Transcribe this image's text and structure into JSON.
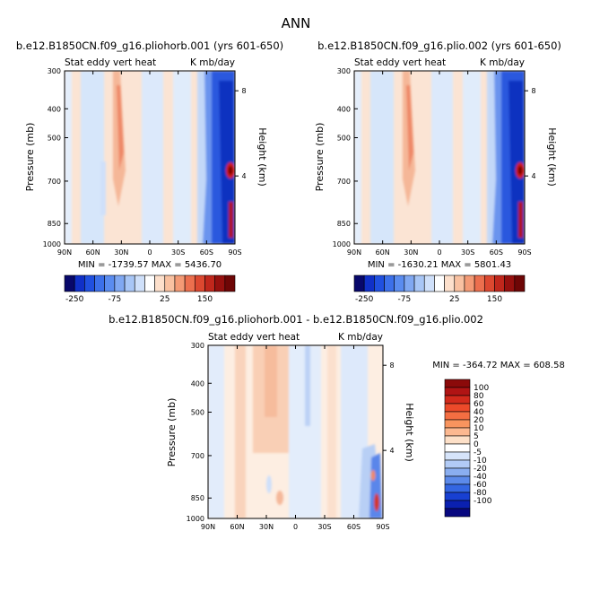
{
  "figure": {
    "title": "ANN"
  },
  "chart_data": [
    {
      "type": "heatmap",
      "title": "b.e12.B1850CN.f09_g16.pliohorb.001 (yrs 601-650)",
      "subtitle_left": "Stat eddy vert heat",
      "subtitle_right": "K mb/day",
      "ylabel": "Pressure (mb)",
      "y2label": "Height (km)",
      "x_ticks": [
        "90N",
        "60N",
        "30N",
        "0",
        "30S",
        "60S",
        "90S"
      ],
      "y_ticks": [
        "300",
        "400",
        "500",
        "700",
        "850",
        "1000"
      ],
      "y2_ticks": [
        "8",
        "4"
      ],
      "ylim": [
        1000,
        300
      ],
      "stats": "MIN = -1739.57   MAX = 5436.70",
      "colorbar_labels": [
        "-250",
        "-75",
        "25",
        "150"
      ],
      "colorbar_colors": [
        "#08086b",
        "#1030c8",
        "#2050e0",
        "#3c70ea",
        "#5a8cf0",
        "#80a8f2",
        "#a8c6f6",
        "#cfe0fa",
        "#ffffff",
        "#fde0cc",
        "#f9c1a1",
        "#f49a75",
        "#ec6f4e",
        "#dc4830",
        "#c0271c",
        "#96100e",
        "#6e0606"
      ]
    },
    {
      "type": "heatmap",
      "title": "b.e12.B1850CN.f09_g16.plio.002 (yrs 601-650)",
      "subtitle_left": "Stat eddy vert heat",
      "subtitle_right": "K mb/day",
      "ylabel": "Pressure (mb)",
      "y2label": "Height (km)",
      "x_ticks": [
        "90N",
        "60N",
        "30N",
        "0",
        "30S",
        "60S",
        "90S"
      ],
      "y_ticks": [
        "300",
        "400",
        "500",
        "700",
        "850",
        "1000"
      ],
      "y2_ticks": [
        "8",
        "4"
      ],
      "ylim": [
        1000,
        300
      ],
      "stats": "MIN = -1630.21   MAX = 5801.43",
      "colorbar_labels": [
        "-250",
        "-75",
        "25",
        "150"
      ],
      "colorbar_colors": [
        "#08086b",
        "#1030c8",
        "#2050e0",
        "#3c70ea",
        "#5a8cf0",
        "#80a8f2",
        "#a8c6f6",
        "#cfe0fa",
        "#ffffff",
        "#fde0cc",
        "#f9c1a1",
        "#f49a75",
        "#ec6f4e",
        "#dc4830",
        "#c0271c",
        "#96100e",
        "#6e0606"
      ]
    },
    {
      "type": "heatmap",
      "title": "b.e12.B1850CN.f09_g16.pliohorb.001 - b.e12.B1850CN.f09_g16.plio.002",
      "subtitle_left": "Stat eddy vert heat",
      "subtitle_right": "K mb/day",
      "ylabel": "Pressure (mb)",
      "y2label": "Height (km)",
      "x_ticks": [
        "90N",
        "60N",
        "30N",
        "0",
        "30S",
        "60S",
        "90S"
      ],
      "y_ticks": [
        "300",
        "400",
        "500",
        "700",
        "850",
        "1000"
      ],
      "y2_ticks": [
        "8",
        "4"
      ],
      "ylim": [
        1000,
        300
      ],
      "stats": "MIN = -364.72   MAX = 608.58",
      "colorbar_labels": [
        "100",
        "80",
        "60",
        "40",
        "20",
        "10",
        "5",
        "0",
        "-5",
        "-10",
        "-20",
        "-40",
        "-60",
        "-80",
        "-100"
      ],
      "colorbar_colors": [
        "#8b0a0a",
        "#b01414",
        "#d22a1c",
        "#ec4a2a",
        "#f46e42",
        "#f8945e",
        "#fcb890",
        "#fde0c8",
        "#ffffff",
        "#d6e4fa",
        "#b2cbf6",
        "#8aaef0",
        "#5c8aea",
        "#3466e2",
        "#1840d2",
        "#0a20b0",
        "#080880"
      ]
    }
  ]
}
